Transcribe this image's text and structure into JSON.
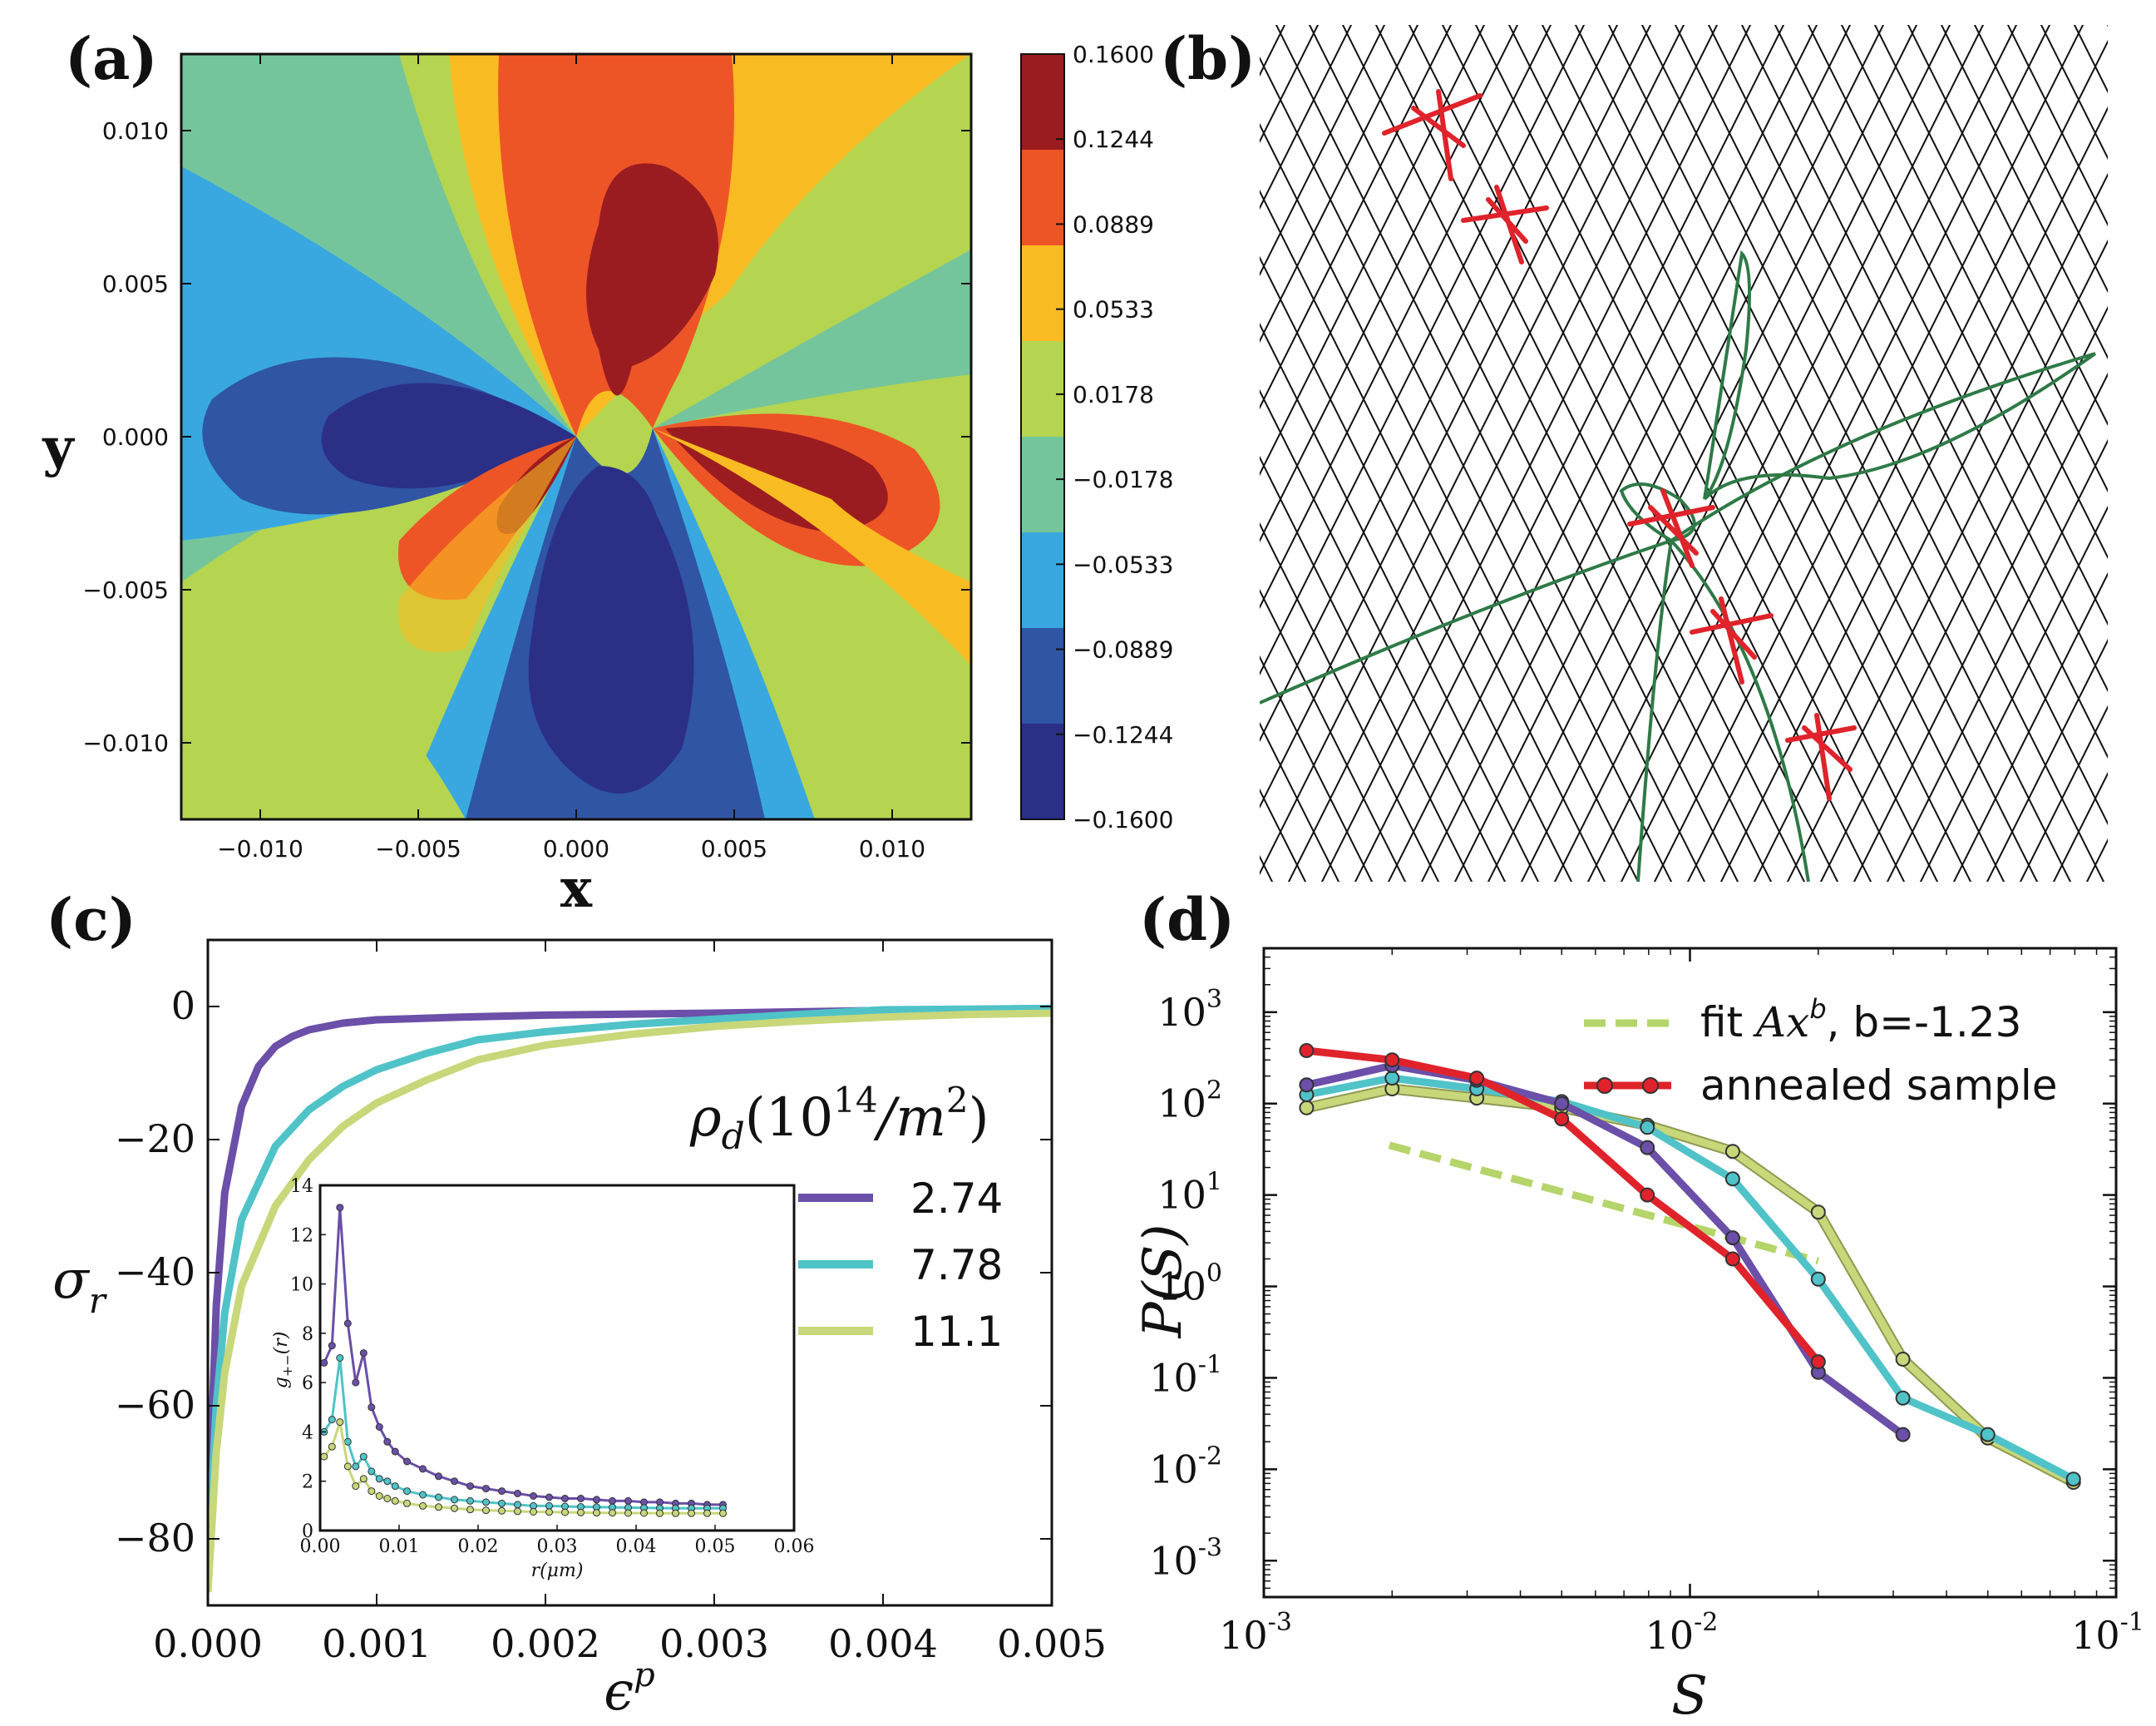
{
  "panels": {
    "a": "(a)",
    "b": "(b)",
    "c": "(c)",
    "d": "(d)"
  },
  "chart_data": [
    {
      "id": "a",
      "type": "heatmap",
      "title": "",
      "xlabel": "x",
      "ylabel": "y",
      "xlim": [
        -0.0125,
        0.0125
      ],
      "ylim": [
        -0.0125,
        0.0125
      ],
      "xticks": [
        "−0.010",
        "−0.005",
        "0.000",
        "0.005",
        "0.010"
      ],
      "xtick_values": [
        -0.01,
        -0.005,
        0.0,
        0.005,
        0.01
      ],
      "yticks": [
        "0.010",
        "0.005",
        "0.000",
        "−0.005",
        "−0.010"
      ],
      "ytick_values": [
        0.01,
        0.005,
        0.0,
        -0.005,
        -0.01
      ],
      "colorbar": {
        "levels": [
          "0.1600",
          "0.1244",
          "0.0889",
          "0.0533",
          "0.0178",
          "−0.0178",
          "−0.0533",
          "−0.0889",
          "−0.1244",
          "−0.1600"
        ],
        "colors": [
          "#9b1c20",
          "#ee5526",
          "#f9bb22",
          "#b5d44f",
          "#75c59c",
          "#39a8e0",
          "#2f55a4",
          "#2b2f86"
        ]
      },
      "dipoles": [
        [
          0.0,
          0.0
        ],
        [
          0.0026,
          0.0003
        ]
      ]
    },
    {
      "id": "b",
      "type": "diagram",
      "description_labels": [],
      "lattice_color": "#111111",
      "dislocation_color": "#e0232b",
      "line_color": "#2e7a46"
    },
    {
      "id": "c",
      "type": "line",
      "xlabel": "ε^p",
      "ylabel": "σ_r",
      "xlim": [
        0.0,
        0.005
      ],
      "ylim": [
        -90,
        10
      ],
      "xticks": [
        "0.000",
        "0.001",
        "0.002",
        "0.003",
        "0.004",
        "0.005"
      ],
      "xtick_values": [
        0.0,
        0.001,
        0.002,
        0.003,
        0.004,
        0.005
      ],
      "yticks": [
        "0",
        "−20",
        "−40",
        "−60",
        "−80"
      ],
      "ytick_values": [
        0,
        -20,
        -40,
        -60,
        -80
      ],
      "legend_title": "ρ_d(10^14/m^2)",
      "legend_position": "right",
      "series": [
        {
          "name": "2.74",
          "color": "#6b4fa8",
          "x": [
            0,
            5e-05,
            0.0001,
            0.0002,
            0.0003,
            0.0004,
            0.0005,
            0.0006,
            0.0008,
            0.001,
            0.0015,
            0.002,
            0.003,
            0.004,
            0.005
          ],
          "y": [
            -80,
            -45,
            -28,
            -15,
            -9,
            -6,
            -4.5,
            -3.5,
            -2.5,
            -2,
            -1.6,
            -1.3,
            -1.0,
            -0.6,
            -0.3
          ]
        },
        {
          "name": "7.78",
          "color": "#4fc3c8",
          "x": [
            0,
            5e-05,
            0.0001,
            0.0002,
            0.0004,
            0.0006,
            0.0008,
            0.001,
            0.0013,
            0.0016,
            0.002,
            0.0025,
            0.003,
            0.0035,
            0.004,
            0.0045,
            0.005
          ],
          "y": [
            -85,
            -60,
            -46,
            -32,
            -21,
            -15.5,
            -12,
            -9.5,
            -7,
            -5,
            -3.8,
            -2.7,
            -1.9,
            -1.2,
            -0.5,
            -0.4,
            -0.3
          ]
        },
        {
          "name": "11.1",
          "color": "#c8d77a",
          "x": [
            0,
            5e-05,
            0.0001,
            0.0002,
            0.0004,
            0.0006,
            0.0008,
            0.001,
            0.0013,
            0.0016,
            0.002,
            0.0025,
            0.003,
            0.0035,
            0.004,
            0.0045,
            0.005
          ],
          "y": [
            -88,
            -67,
            -55,
            -42,
            -30,
            -23,
            -18,
            -14.5,
            -11,
            -8,
            -5.8,
            -4.2,
            -3.0,
            -2.2,
            -1.6,
            -1.2,
            -1.0
          ]
        }
      ],
      "inset": {
        "xlabel": "r(μm)",
        "ylabel": "g+−(r)",
        "xlim": [
          0,
          0.06
        ],
        "ylim": [
          0,
          14
        ],
        "xticks": [
          "0.00",
          "0.01",
          "0.02",
          "0.03",
          "0.04",
          "0.05",
          "0.06"
        ],
        "xtick_values": [
          0.0,
          0.01,
          0.02,
          0.03,
          0.04,
          0.05,
          0.06
        ],
        "yticks": [
          "0",
          "2",
          "4",
          "6",
          "8",
          "10",
          "12",
          "14"
        ],
        "ytick_values": [
          0,
          2,
          4,
          6,
          8,
          10,
          12,
          14
        ],
        "series": [
          {
            "name": "2.74",
            "color": "#6b4fa8",
            "x": [
              0.0005,
              0.0015,
              0.0025,
              0.0035,
              0.0045,
              0.0055,
              0.0065,
              0.0075,
              0.0085,
              0.0095,
              0.011,
              0.013,
              0.015,
              0.017,
              0.019,
              0.021,
              0.023,
              0.025,
              0.027,
              0.029,
              0.031,
              0.033,
              0.035,
              0.037,
              0.039,
              0.041,
              0.043,
              0.045,
              0.047,
              0.049,
              0.051
            ],
            "y": [
              6.8,
              7.5,
              13.1,
              8.4,
              6.0,
              7.2,
              5.0,
              4.2,
              3.6,
              3.2,
              2.8,
              2.5,
              2.2,
              2.0,
              1.8,
              1.7,
              1.6,
              1.5,
              1.4,
              1.35,
              1.3,
              1.3,
              1.25,
              1.2,
              1.2,
              1.15,
              1.15,
              1.1,
              1.1,
              1.05,
              1.05
            ]
          },
          {
            "name": "7.78",
            "color": "#4fc3c8",
            "x": [
              0.0005,
              0.0015,
              0.0025,
              0.0035,
              0.0045,
              0.0055,
              0.0065,
              0.0075,
              0.0085,
              0.0095,
              0.011,
              0.013,
              0.015,
              0.017,
              0.019,
              0.021,
              0.023,
              0.025,
              0.027,
              0.029,
              0.031,
              0.033,
              0.035,
              0.037,
              0.039,
              0.041,
              0.043,
              0.045,
              0.047,
              0.049,
              0.051
            ],
            "y": [
              4.0,
              4.5,
              7.0,
              3.6,
              2.6,
              3.0,
              2.4,
              2.1,
              2.0,
              1.8,
              1.6,
              1.45,
              1.35,
              1.25,
              1.2,
              1.15,
              1.1,
              1.05,
              1.0,
              1.0,
              0.98,
              0.96,
              0.95,
              0.94,
              0.93,
              0.92,
              0.91,
              0.9,
              0.9,
              0.9,
              0.9
            ]
          },
          {
            "name": "11.1",
            "color": "#c8d77a",
            "x": [
              0.0005,
              0.0015,
              0.0025,
              0.0035,
              0.0045,
              0.0055,
              0.0065,
              0.0075,
              0.0085,
              0.0095,
              0.011,
              0.013,
              0.015,
              0.017,
              0.019,
              0.021,
              0.023,
              0.025,
              0.027,
              0.029,
              0.031,
              0.033,
              0.035,
              0.037,
              0.039,
              0.041,
              0.043,
              0.045,
              0.047,
              0.049,
              0.051
            ],
            "y": [
              3.0,
              3.4,
              4.4,
              2.6,
              1.8,
              2.1,
              1.6,
              1.4,
              1.3,
              1.2,
              1.1,
              1.0,
              0.95,
              0.9,
              0.85,
              0.82,
              0.8,
              0.78,
              0.76,
              0.75,
              0.74,
              0.73,
              0.72,
              0.72,
              0.71,
              0.71,
              0.7,
              0.7,
              0.7,
              0.7,
              0.7
            ]
          }
        ]
      }
    },
    {
      "id": "d",
      "type": "line",
      "xscale": "log",
      "yscale": "log",
      "xlabel": "S",
      "ylabel": "P(S)",
      "xlim": [
        0.001,
        0.1
      ],
      "ylim": [
        0.0004,
        5000
      ],
      "xticks": [
        "10",
        "10",
        "10"
      ],
      "xtick_exps": [
        "-3",
        "-2",
        "-1"
      ],
      "xtick_values": [
        0.001,
        0.01,
        0.1
      ],
      "yticks": [
        "10",
        "10",
        "10",
        "10",
        "10",
        "10",
        "10"
      ],
      "ytick_exps": [
        "3",
        "2",
        "1",
        "0",
        "-1",
        "-2",
        "-3"
      ],
      "ytick_values": [
        1000,
        100,
        10,
        1,
        0.1,
        0.01,
        0.001
      ],
      "legend_position": "top-right",
      "legend": [
        {
          "label_prefix": "fit ",
          "label_math": "Ax",
          "label_sup": "b",
          "label_suffix": ", b=-1.23",
          "style": "dashed",
          "color": "#b5d46a"
        },
        {
          "label_prefix": "annealed sample",
          "label_math": "",
          "label_sup": "",
          "label_suffix": "",
          "style": "solid-marker",
          "color": "#e0232b"
        }
      ],
      "fit": {
        "x": [
          0.00197,
          0.02
        ],
        "y": [
          35,
          1.9
        ],
        "color": "#b5d46a"
      },
      "series": [
        {
          "name": "2.74",
          "color": "#6b4fa8",
          "x": [
            0.00126,
            0.002,
            0.00316,
            0.005,
            0.00794,
            0.0126,
            0.02,
            0.0316
          ],
          "y": [
            160,
            260,
            180,
            100,
            33,
            3.4,
            0.115,
            0.024
          ]
        },
        {
          "name": "7.78",
          "color": "#4fc3c8",
          "x": [
            0.00126,
            0.002,
            0.00316,
            0.005,
            0.00794,
            0.0126,
            0.02,
            0.0316,
            0.05,
            0.0794
          ],
          "y": [
            125,
            190,
            145,
            105,
            55,
            15,
            1.2,
            0.06,
            0.024,
            0.0078
          ]
        },
        {
          "name": "11.1",
          "color": "#c8d77a",
          "x": [
            0.00126,
            0.002,
            0.00316,
            0.005,
            0.00794,
            0.0126,
            0.02,
            0.0316,
            0.05,
            0.0794
          ],
          "y": [
            90,
            145,
            115,
            90,
            58,
            30,
            6.5,
            0.16,
            0.022,
            0.0072
          ]
        },
        {
          "name": "annealed sample",
          "color": "#e0232b",
          "x": [
            0.00126,
            0.002,
            0.00316,
            0.005,
            0.00794,
            0.0126,
            0.02
          ],
          "y": [
            380,
            300,
            190,
            68,
            10,
            2.0,
            0.15
          ]
        }
      ]
    }
  ]
}
